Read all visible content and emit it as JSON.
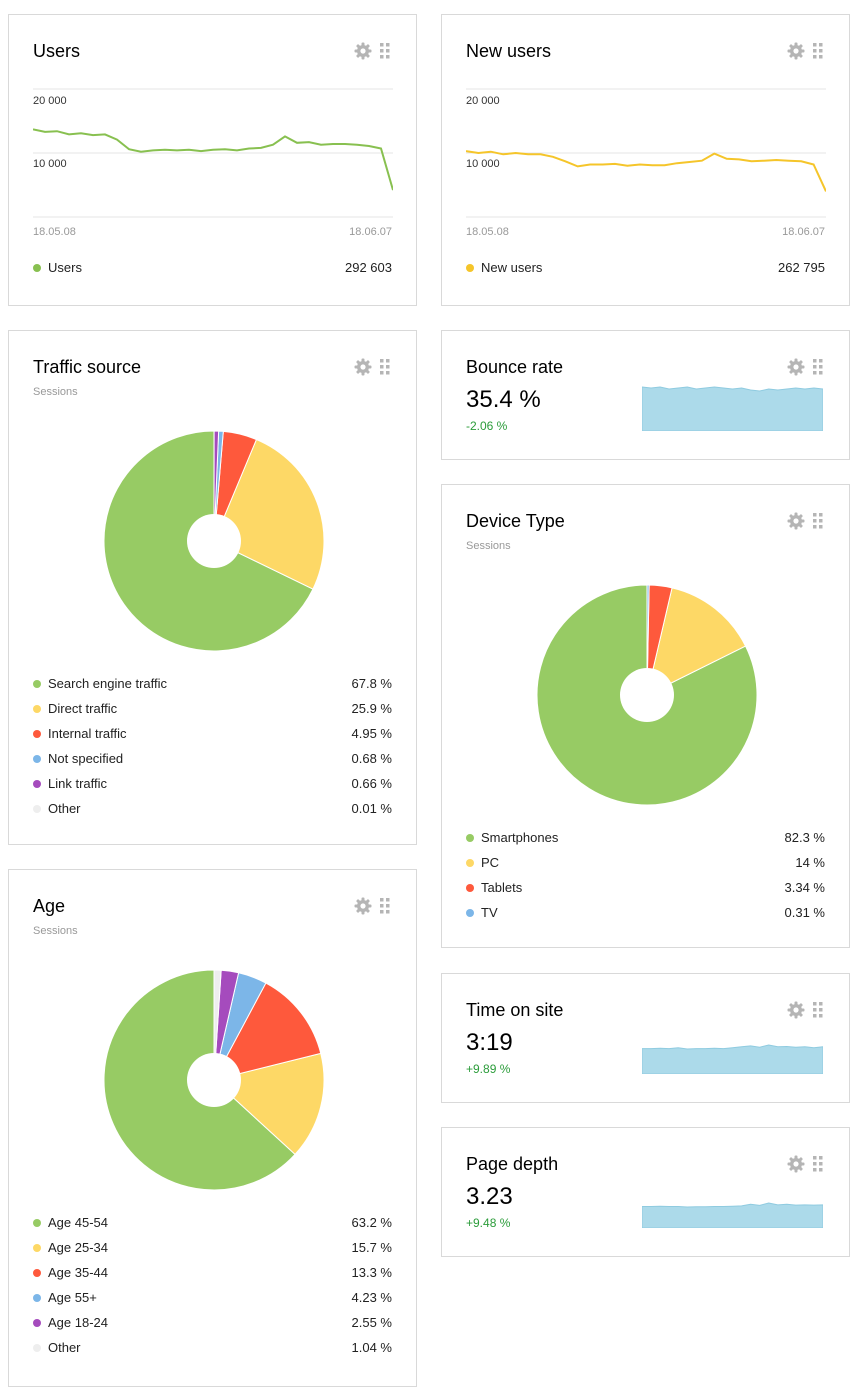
{
  "colors": {
    "green": "#97cb64",
    "yellow": "#fdd866",
    "red": "#fe593c",
    "blue": "#7cb6e8",
    "purple": "#a54bbd",
    "other": "#eeeeee",
    "users_line": "#88c050",
    "new_users_line": "#f5c52a",
    "spark_fill": "#acdaea",
    "delta_green": "#2b9c3a"
  },
  "icons": {
    "settings": "gear-icon",
    "drag": "drag-handle-icon"
  },
  "users": {
    "title": "Users",
    "y_tick_high": "20 000",
    "y_tick_low": "10 000",
    "date_start": "18.05.08",
    "date_end": "18.06.07",
    "legend_label": "Users",
    "total": "292 603"
  },
  "new_users": {
    "title": "New users",
    "y_tick_high": "20 000",
    "y_tick_low": "10 000",
    "date_start": "18.05.08",
    "date_end": "18.06.07",
    "legend_label": "New users",
    "total": "262 795"
  },
  "traffic": {
    "title": "Traffic source",
    "subtitle": "Sessions",
    "items": [
      {
        "label": "Search engine traffic",
        "value": "67.8 %"
      },
      {
        "label": "Direct traffic",
        "value": "25.9 %"
      },
      {
        "label": "Internal traffic",
        "value": "4.95 %"
      },
      {
        "label": "Not specified",
        "value": "0.68 %"
      },
      {
        "label": "Link traffic",
        "value": "0.66 %"
      },
      {
        "label": "Other",
        "value": "0.01 %"
      }
    ]
  },
  "bounce": {
    "title": "Bounce rate",
    "value": "35.4 %",
    "delta": "-2.06 %"
  },
  "device": {
    "title": "Device Type",
    "subtitle": "Sessions",
    "items": [
      {
        "label": "Smartphones",
        "value": "82.3 %"
      },
      {
        "label": "PC",
        "value": "14 %"
      },
      {
        "label": "Tablets",
        "value": "3.34 %"
      },
      {
        "label": "TV",
        "value": "0.31 %"
      }
    ]
  },
  "age": {
    "title": "Age",
    "subtitle": "Sessions",
    "items": [
      {
        "label": "Age 45-54",
        "value": "63.2 %"
      },
      {
        "label": "Age 25-34",
        "value": "15.7 %"
      },
      {
        "label": "Age 35-44",
        "value": "13.3 %"
      },
      {
        "label": "Age 55+",
        "value": "4.23 %"
      },
      {
        "label": "Age 18-24",
        "value": "2.55 %"
      },
      {
        "label": "Other",
        "value": "1.04 %"
      }
    ]
  },
  "time_on_site": {
    "title": "Time on site",
    "value": "3:19",
    "delta": "+9.89 %"
  },
  "page_depth": {
    "title": "Page depth",
    "value": "3.23",
    "delta": "+9.48 %"
  },
  "chart_data": [
    {
      "type": "line",
      "title": "Users",
      "x_labels": [
        "18.05.08",
        "18.06.07"
      ],
      "ylim": [
        0,
        20000
      ],
      "series": [
        {
          "name": "Users",
          "values": [
            13700,
            13300,
            13400,
            12900,
            13100,
            12800,
            12900,
            12100,
            10600,
            10200,
            10400,
            10500,
            10400,
            10500,
            10300,
            10500,
            10600,
            10400,
            10700,
            10800,
            11300,
            12600,
            11600,
            11700,
            11300,
            11400,
            11400,
            11300,
            11100,
            10700,
            4200
          ]
        }
      ]
    },
    {
      "type": "line",
      "title": "New users",
      "x_labels": [
        "18.05.08",
        "18.06.07"
      ],
      "ylim": [
        0,
        20000
      ],
      "series": [
        {
          "name": "New users",
          "values": [
            10300,
            10000,
            10200,
            9800,
            10000,
            9800,
            9800,
            9400,
            8700,
            7900,
            8200,
            8200,
            8300,
            8000,
            8200,
            8100,
            8100,
            8400,
            8600,
            8800,
            9900,
            9100,
            9000,
            8700,
            8800,
            8900,
            8800,
            8700,
            8200,
            4000
          ]
        }
      ]
    },
    {
      "type": "pie",
      "title": "Traffic source",
      "categories": [
        "Search engine traffic",
        "Direct traffic",
        "Internal traffic",
        "Not specified",
        "Link traffic",
        "Other"
      ],
      "values": [
        67.8,
        25.9,
        4.95,
        0.68,
        0.66,
        0.01
      ]
    },
    {
      "type": "pie",
      "title": "Device Type",
      "categories": [
        "Smartphones",
        "PC",
        "Tablets",
        "TV"
      ],
      "values": [
        82.3,
        14,
        3.34,
        0.31
      ]
    },
    {
      "type": "pie",
      "title": "Age",
      "categories": [
        "Age 45-54",
        "Age 25-34",
        "Age 35-44",
        "Age 55+",
        "Age 18-24",
        "Other"
      ],
      "values": [
        63.2,
        15.7,
        13.3,
        4.23,
        2.55,
        1.04
      ]
    },
    {
      "type": "area",
      "title": "Bounce rate",
      "values": [
        35.6,
        35.5,
        35.6,
        35.4,
        35.5,
        35.6,
        35.4,
        35.5,
        35.6,
        35.5,
        35.4,
        35.5,
        35.3,
        35.2,
        35.4,
        35.3,
        35.4,
        35.5,
        35.4,
        35.5,
        35.4
      ]
    },
    {
      "type": "area",
      "title": "Time on site",
      "values": [
        3.1,
        3.1,
        3.12,
        3.1,
        3.15,
        3.08,
        3.1,
        3.1,
        3.12,
        3.1,
        3.15,
        3.2,
        3.25,
        3.18,
        3.3,
        3.2,
        3.22,
        3.18,
        3.2,
        3.15,
        3.2
      ]
    },
    {
      "type": "area",
      "title": "Page depth",
      "values": [
        3.12,
        3.12,
        3.13,
        3.12,
        3.12,
        3.1,
        3.11,
        3.11,
        3.12,
        3.12,
        3.13,
        3.14,
        3.2,
        3.16,
        3.25,
        3.18,
        3.2,
        3.17,
        3.18,
        3.17,
        3.18
      ]
    }
  ]
}
